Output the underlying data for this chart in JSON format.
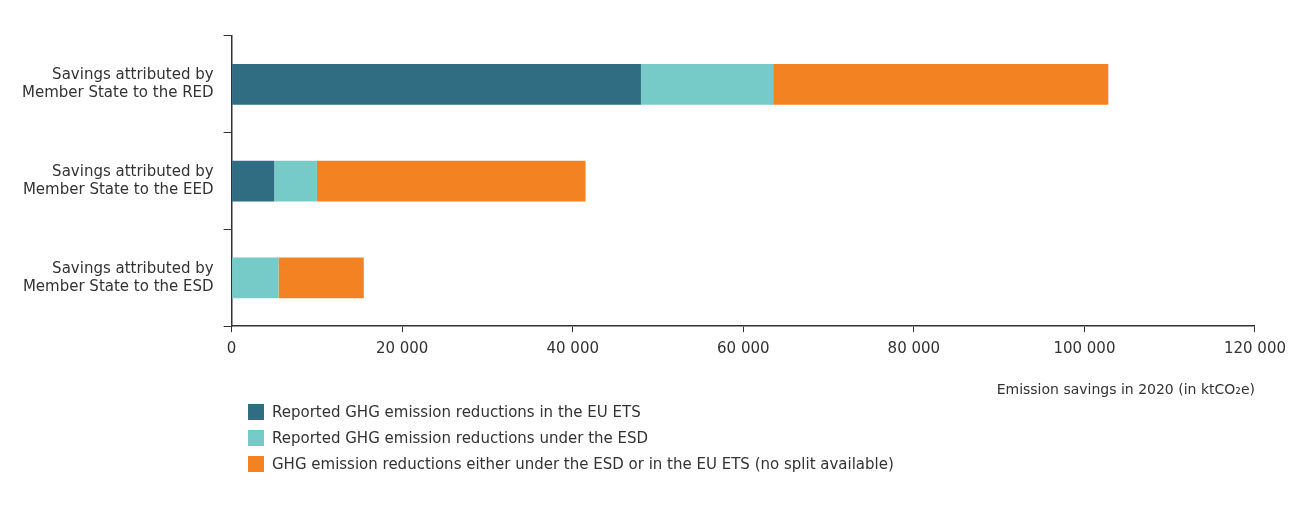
{
  "chart_data": {
    "type": "bar",
    "orientation": "horizontal",
    "stacked": true,
    "xlabel": "Emission savings in 2020 (in ktCO₂e)",
    "categories": [
      "Savings attributed by Member State to the RED",
      "Savings attributed by Member State to the EED",
      "Savings attributed by Member State to the ESD"
    ],
    "series": [
      {
        "name": "Reported GHG emission reductions in the EU ETS",
        "color": "#306d83",
        "values": [
          48000,
          5000,
          null
        ]
      },
      {
        "name": "Reported GHG emission reductions under the ESD",
        "color": "#76cbc8",
        "values": [
          15500,
          5000,
          5500
        ]
      },
      {
        "name": "GHG emission reductions either under the ESD or in the EU ETS (no split available)",
        "color": "#f38222",
        "values": [
          39300,
          31500,
          10000
        ]
      }
    ],
    "xlim": [
      0,
      120000
    ],
    "xticks": [
      {
        "value": 0,
        "label": "0"
      },
      {
        "value": 20000,
        "label": "20 000"
      },
      {
        "value": 40000,
        "label": "40 000"
      },
      {
        "value": 60000,
        "label": "60 000"
      },
      {
        "value": 80000,
        "label": "80 000"
      },
      {
        "value": 100000,
        "label": "100 000"
      },
      {
        "value": 120000,
        "label": "120 000"
      }
    ],
    "grid": false,
    "legend": "bottom left"
  }
}
